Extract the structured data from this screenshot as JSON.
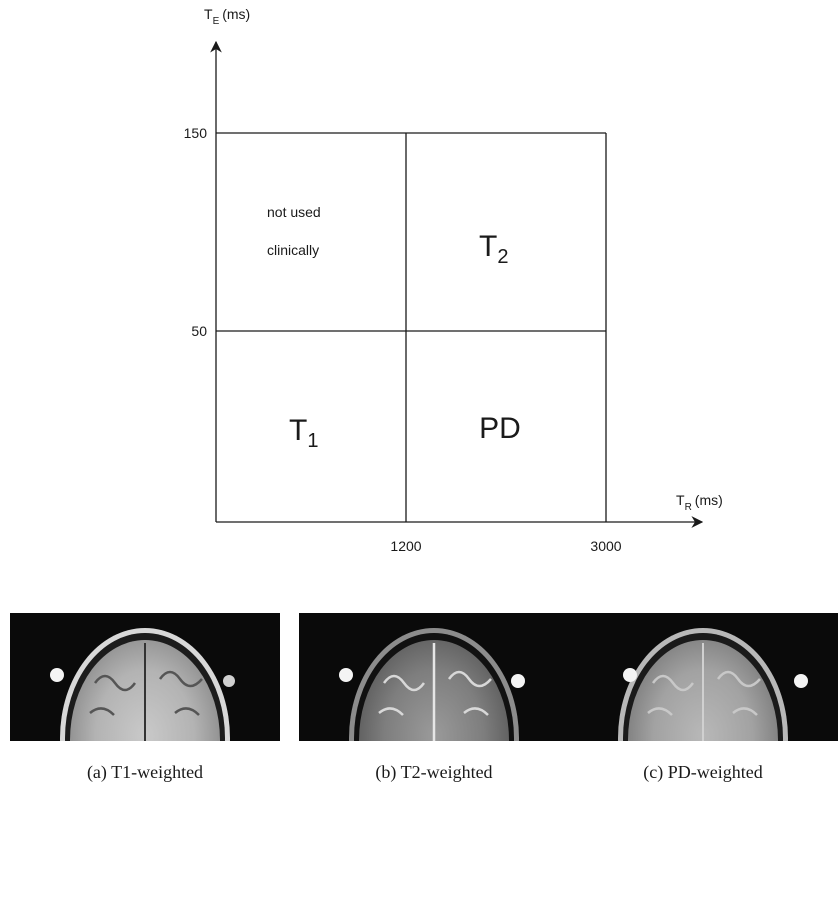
{
  "diagram": {
    "y_axis": {
      "label_main": "T",
      "label_sub": "E",
      "label_unit": "(ms)"
    },
    "x_axis": {
      "label_main": "T",
      "label_sub": "R",
      "label_unit": "(ms)"
    },
    "y_ticks": [
      "150",
      "50"
    ],
    "x_ticks": [
      "1200",
      "3000"
    ],
    "regions": {
      "not_used": {
        "line1": "not used",
        "line2": "clinically"
      },
      "t2": {
        "main": "T",
        "sub": "2"
      },
      "t1": {
        "main": "T",
        "sub": "1"
      },
      "pd": {
        "label": "PD"
      }
    }
  },
  "panels": [
    {
      "caption": "(a) T1-weighted",
      "style": "t1"
    },
    {
      "caption": "(b) T2-weighted",
      "style": "t2"
    },
    {
      "caption": "(c) PD-weighted",
      "style": "pd"
    }
  ]
}
